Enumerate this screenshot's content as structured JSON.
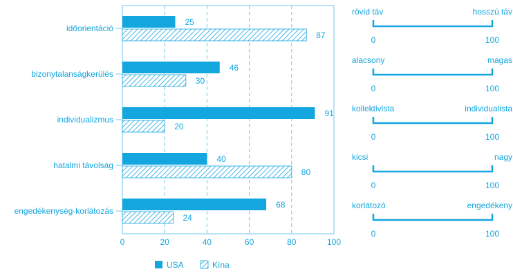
{
  "colors": {
    "accent": "#14a6df",
    "grid": "#6cc7ef"
  },
  "chart_data": {
    "type": "bar",
    "orientation": "horizontal",
    "categories": [
      "időorientáció",
      "bizonytalanságkerülés",
      "individualizmus",
      "hatalmi távolság",
      "engedékenység-korlátozás"
    ],
    "series": [
      {
        "name": "USA",
        "values": [
          25,
          46,
          91,
          40,
          68
        ],
        "style": "solid"
      },
      {
        "name": "Kína",
        "values": [
          87,
          30,
          20,
          80,
          24
        ],
        "style": "hatched"
      }
    ],
    "x_ticks": [
      0,
      20,
      40,
      60,
      80,
      100
    ],
    "xlim": [
      0,
      100
    ],
    "grid": true,
    "legend_position": "bottom"
  },
  "scales": [
    {
      "left": "rövid táv",
      "right": "hosszú táv",
      "min": "0",
      "max": "100"
    },
    {
      "left": "alacsony",
      "right": "magas",
      "min": "0",
      "max": "100"
    },
    {
      "left": "kollektivista",
      "right": "individualista",
      "min": "0",
      "max": "100"
    },
    {
      "left": "kicsi",
      "right": "nagy",
      "min": "0",
      "max": "100"
    },
    {
      "left": "korlátozó",
      "right": "engedékeny",
      "min": "0",
      "max": "100"
    }
  ]
}
